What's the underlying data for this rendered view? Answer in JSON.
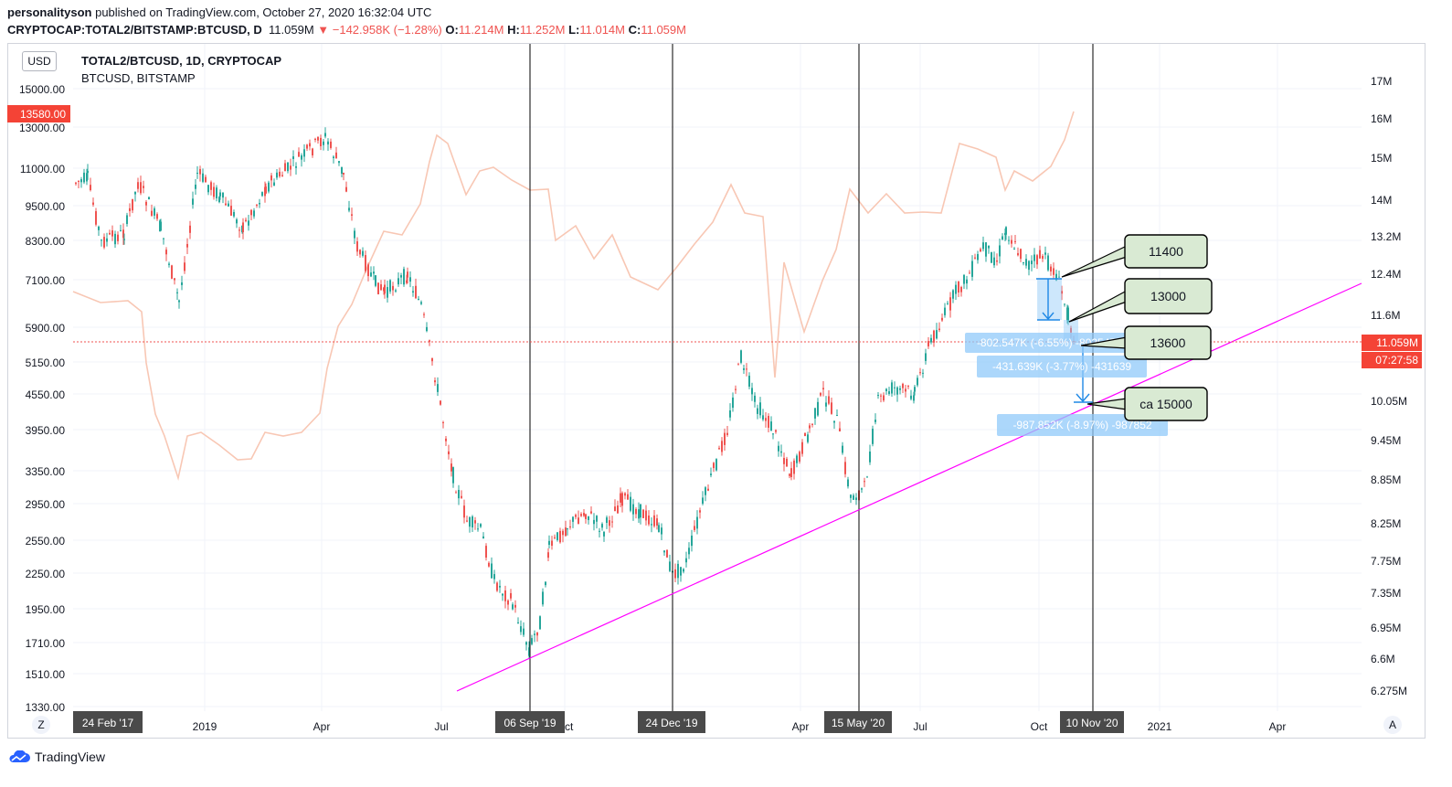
{
  "header": {
    "author": "personalityson",
    "published": "published on TradingView.com, October 27, 2020 16:32:04 UTC",
    "symbol": "CRYPTOCAP:TOTAL2/BITSTAMP:BTCUSD, D",
    "last": "11.059M",
    "change": "▼ −142.958K (−1.28%)",
    "o_label": "O:",
    "o_val": "11.214M",
    "h_label": "H:",
    "h_val": "11.252M",
    "l_label": "L:",
    "l_val": "11.014M",
    "c_label": "C:",
    "c_val": "11.059M"
  },
  "currency_button": "USD",
  "legend": {
    "line1": "TOTAL2/BTCUSD, 1D, CRYPTOCAP",
    "line2": "BTCUSD, BITSTAMP"
  },
  "left_axis": {
    "ticks": [
      "15000.00",
      "13000.00",
      "11000.00",
      "9500.00",
      "8300.00",
      "7100.00",
      "5900.00",
      "5150.00",
      "4550.00",
      "3950.00",
      "3350.00",
      "2950.00",
      "2550.00",
      "2250.00",
      "1950.00",
      "1710.00",
      "1510.00",
      "1330.00"
    ],
    "current_label": "13580.00"
  },
  "right_axis": {
    "ticks": [
      "17M",
      "16M",
      "15M",
      "14M",
      "13.2M",
      "12.4M",
      "11.6M",
      "10.05M",
      "9.45M",
      "8.85M",
      "8.25M",
      "7.75M",
      "7.35M",
      "6.95M",
      "6.6M",
      "6.275M"
    ],
    "current_value": "11.059M",
    "countdown": "07:27:58"
  },
  "time_axis": {
    "labels": [
      "2019",
      "Apr",
      "Jul",
      "Oct",
      "Apr",
      "Jul",
      "Oct",
      "2021",
      "Apr"
    ],
    "markers": [
      "24 Feb '17",
      "06 Sep '19",
      "24 Dec '19",
      "15 May '20",
      "10 Nov '20"
    ],
    "left_button": "Z",
    "right_button": "A"
  },
  "callouts": [
    "11400",
    "13000",
    "13600",
    "ca 15000"
  ],
  "measures": [
    "-802.547K (-6.55%) -802547",
    "-431.639K (-3.77%) -431639",
    "-987.852K (-8.97%) -987852"
  ],
  "branding": "TradingView",
  "colors": {
    "up": "#26a69a",
    "down": "#ef5350",
    "btc_line": "#f8c7b4",
    "trendline": "#ff00ff",
    "measure_fill": "#90caf9",
    "callout_fill": "#d9ead3",
    "price_tag": "#f44336"
  },
  "chart_data": {
    "type": "candlestick",
    "series": [
      {
        "name": "TOTAL2/BTCUSD, 1D, CRYPTOCAP"
      },
      {
        "name": "BTCUSD, BITSTAMP"
      }
    ]
  }
}
